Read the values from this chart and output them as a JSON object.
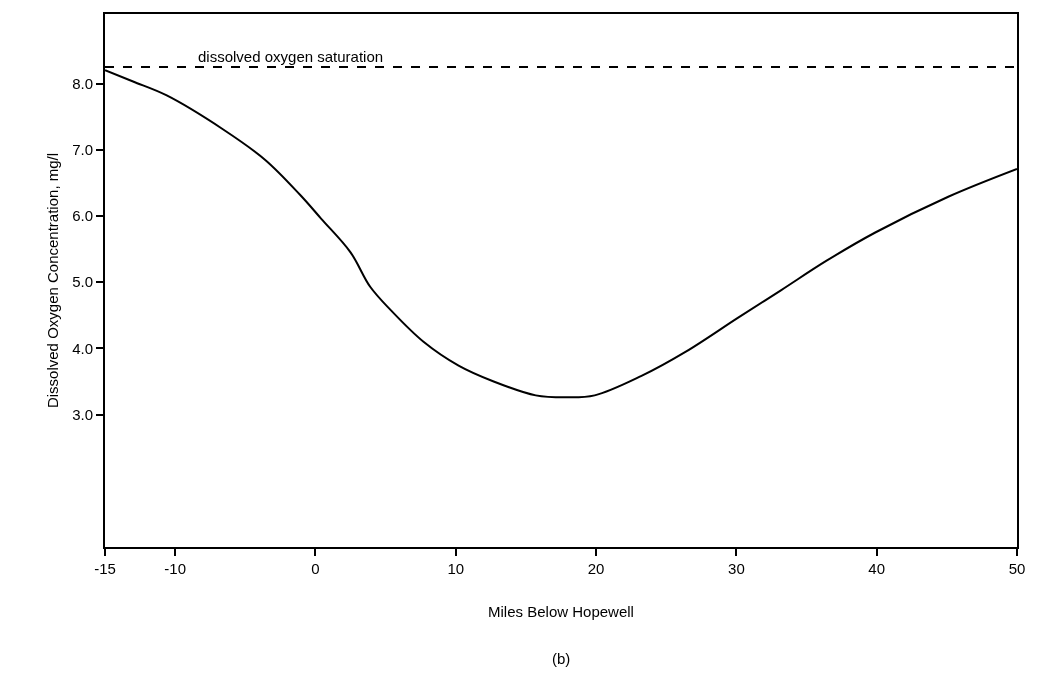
{
  "chart_data": {
    "type": "line",
    "xlabel": "Miles Below Hopewell",
    "ylabel": "Dissolved Oxygen Concentration, mg/l",
    "annotations": [
      "(b)"
    ],
    "x": [
      -15,
      -13.0,
      -10.6,
      -6.6,
      -3.6,
      -1.1,
      0.4,
      2.5,
      3.9,
      5.4,
      7.7,
      10.2,
      12.7,
      15.7,
      17.9,
      19.9,
      23.2,
      26.4,
      30.1,
      33.2,
      36.4,
      39.9,
      45.1,
      50
    ],
    "series": [
      {
        "color": "#000000",
        "values": [
          8.2,
          8.03,
          7.82,
          7.31,
          6.85,
          6.32,
          5.96,
          5.45,
          4.93,
          4.57,
          4.1,
          3.74,
          3.5,
          3.29,
          3.26,
          3.29,
          3.58,
          3.95,
          4.46,
          4.88,
          5.32,
          5.75,
          6.29,
          6.71
        ]
      }
    ],
    "ref_lines": [
      {
        "axis": "y",
        "value": 8.25,
        "label": "dissolved oxygen saturation",
        "color": "#000000",
        "line_style": "dashed"
      }
    ],
    "xlim": [
      -15,
      50
    ],
    "xticks": [
      -15,
      -10,
      0,
      10,
      20,
      30,
      40,
      50
    ],
    "ylim": [
      1.0,
      9.05
    ],
    "yticks": [
      {
        "value": 3,
        "label": "3.0"
      },
      {
        "value": 4,
        "label": "4.0"
      },
      {
        "value": 5,
        "label": "5.0"
      },
      {
        "value": 6,
        "label": "6.0"
      },
      {
        "value": 7,
        "label": "7.0"
      },
      {
        "value": 8,
        "label": "8.0"
      }
    ],
    "marker": "none",
    "line_style": "solid"
  }
}
